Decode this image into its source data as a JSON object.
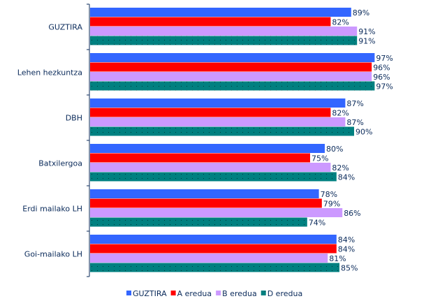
{
  "chart_data": {
    "type": "bar",
    "orientation": "horizontal",
    "categories": [
      "GUZTIRA",
      "Lehen hezkuntza",
      "DBH",
      "Batxilergoa",
      "Erdi mailako LH",
      "Goi-mailako LH"
    ],
    "series": [
      {
        "name": "GUZTIRA",
        "color": "#3366FF",
        "values": [
          89,
          97,
          87,
          80,
          78,
          84
        ]
      },
      {
        "name": "A eredua",
        "color": "#FF0000",
        "values": [
          82,
          96,
          82,
          75,
          79,
          84
        ]
      },
      {
        "name": "B eredua",
        "color": "#CC99FF",
        "values": [
          91,
          96,
          87,
          82,
          86,
          81
        ]
      },
      {
        "name": "D eredua",
        "color": "#008080",
        "values": [
          91,
          97,
          90,
          84,
          74,
          85
        ]
      }
    ],
    "value_suffix": "%",
    "xlim": [
      0,
      100
    ],
    "grid": false,
    "legend": "bottom"
  }
}
